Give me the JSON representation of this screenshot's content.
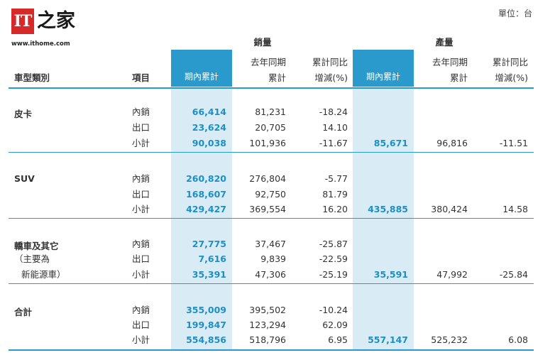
{
  "brand": {
    "mark": "IT",
    "zh": "之家",
    "url": "www.ithome.com"
  },
  "unit": "單位：台",
  "headers": {
    "sales_group": "銷量",
    "prod_group": "產量",
    "category": "車型類別",
    "item": "項目",
    "period_total": "期內累計",
    "last_year_line1": "去年同期",
    "last_year_line2": "累計",
    "yoy_line1": "累計同比",
    "yoy_line2": "增減(%)"
  },
  "groups": [
    {
      "name": [
        "皮卡"
      ],
      "rows": [
        {
          "item": "內銷",
          "sales": "66,414",
          "sales_ly": "81,231",
          "sales_yoy": "-18.24"
        },
        {
          "item": "出口",
          "sales": "23,624",
          "sales_ly": "20,705",
          "sales_yoy": "14.10"
        },
        {
          "item": "小計",
          "sales": "90,038",
          "sales_ly": "101,936",
          "sales_yoy": "-11.67",
          "prod": "85,671",
          "prod_ly": "96,816",
          "prod_yoy": "-11.51"
        }
      ]
    },
    {
      "name": [
        "SUV"
      ],
      "rows": [
        {
          "item": "內銷",
          "sales": "260,820",
          "sales_ly": "276,804",
          "sales_yoy": "-5.77"
        },
        {
          "item": "出口",
          "sales": "168,607",
          "sales_ly": "92,750",
          "sales_yoy": "81.79"
        },
        {
          "item": "小計",
          "sales": "429,427",
          "sales_ly": "369,554",
          "sales_yoy": "16.20",
          "prod": "435,885",
          "prod_ly": "380,424",
          "prod_yoy": "14.58"
        }
      ]
    },
    {
      "name": [
        "轎車及其它",
        "（主要為",
        "新能源車）"
      ],
      "rows": [
        {
          "item": "內銷",
          "sales": "27,775",
          "sales_ly": "37,467",
          "sales_yoy": "-25.87"
        },
        {
          "item": "出口",
          "sales": "7,616",
          "sales_ly": "9,839",
          "sales_yoy": "-22.59"
        },
        {
          "item": "小計",
          "sales": "35,391",
          "sales_ly": "47,306",
          "sales_yoy": "-25.19",
          "prod": "35,591",
          "prod_ly": "47,992",
          "prod_yoy": "-25.84"
        }
      ]
    },
    {
      "name": [
        "合計"
      ],
      "rows": [
        {
          "item": "內銷",
          "sales": "355,009",
          "sales_ly": "395,502",
          "sales_yoy": "-10.24"
        },
        {
          "item": "出口",
          "sales": "199,847",
          "sales_ly": "123,294",
          "sales_yoy": "62.09"
        },
        {
          "item": "小計",
          "sales": "554,856",
          "sales_ly": "518,796",
          "sales_yoy": "6.95",
          "prod": "557,147",
          "prod_ly": "525,232",
          "prod_yoy": "6.08"
        }
      ]
    }
  ]
}
